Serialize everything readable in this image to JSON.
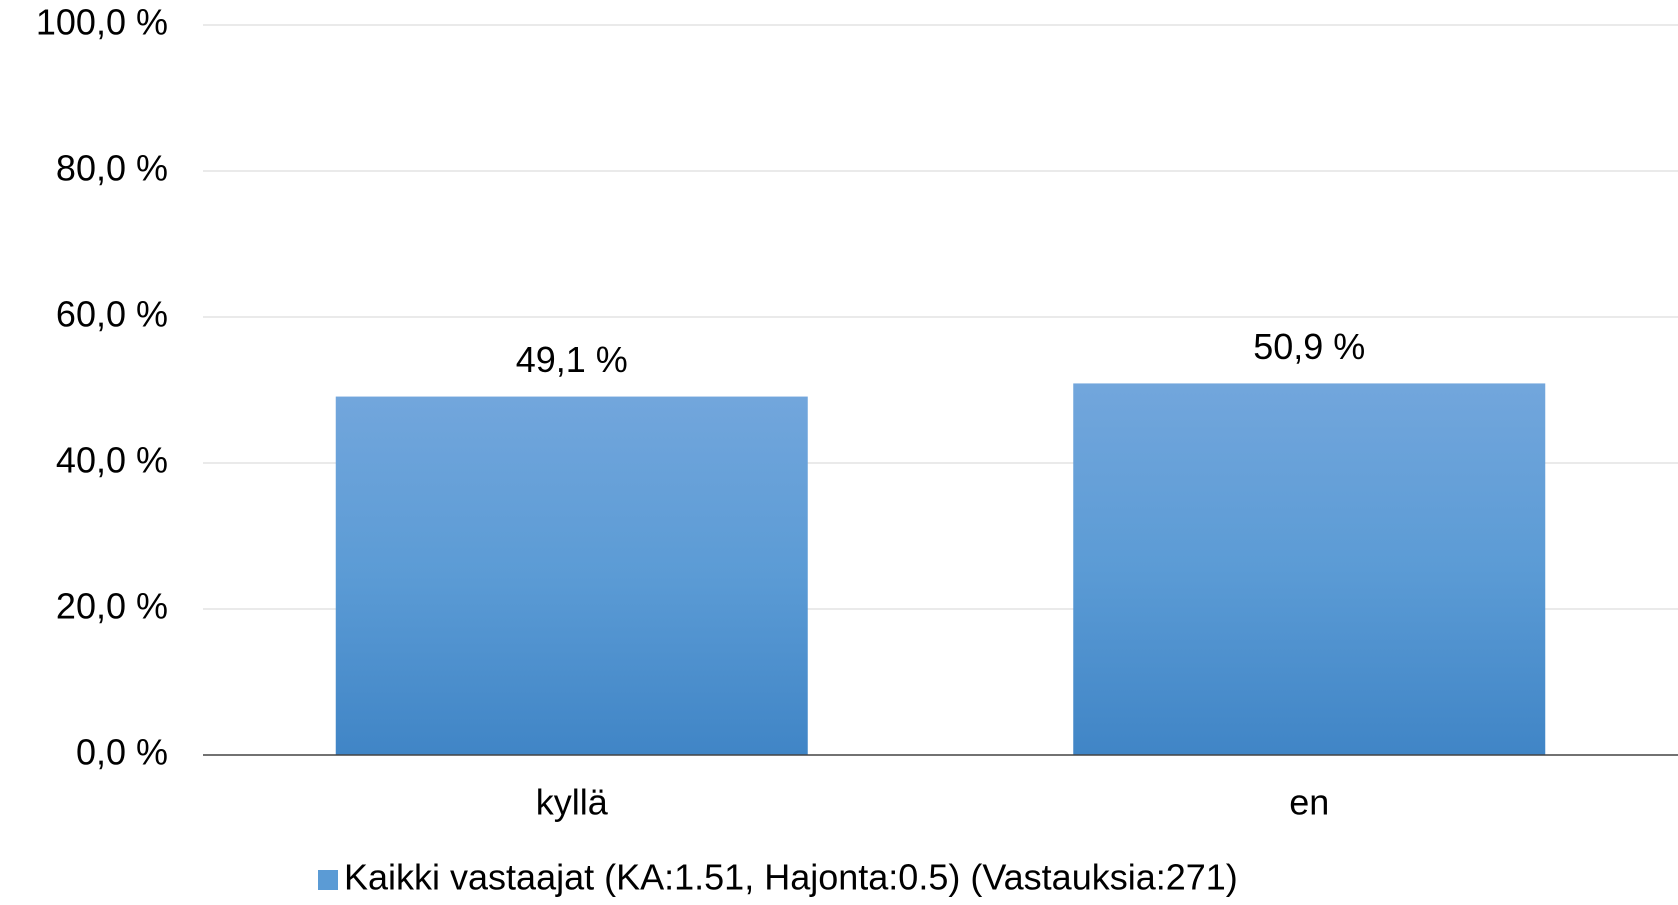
{
  "chart_data": {
    "type": "bar",
    "categories": [
      "kyllä",
      "en"
    ],
    "series": [
      {
        "name": "Kaikki vastaajat (KA:1.51, Hajonta:0.5) (Vastauksia:271)",
        "color": "#5b9bd5",
        "values": [
          49.1,
          50.9
        ],
        "value_labels": [
          "49,1 %",
          "50,9 %"
        ]
      }
    ],
    "ylim": [
      0,
      100
    ],
    "yticks": [
      {
        "value": 0,
        "label": "0,0 %"
      },
      {
        "value": 20,
        "label": "20,0 %"
      },
      {
        "value": 40,
        "label": "40,0 %"
      },
      {
        "value": 60,
        "label": "60,0 %"
      },
      {
        "value": 80,
        "label": "80,0 %"
      },
      {
        "value": 100,
        "label": "100,0 %"
      }
    ],
    "grid": true,
    "legend": "bottom"
  }
}
